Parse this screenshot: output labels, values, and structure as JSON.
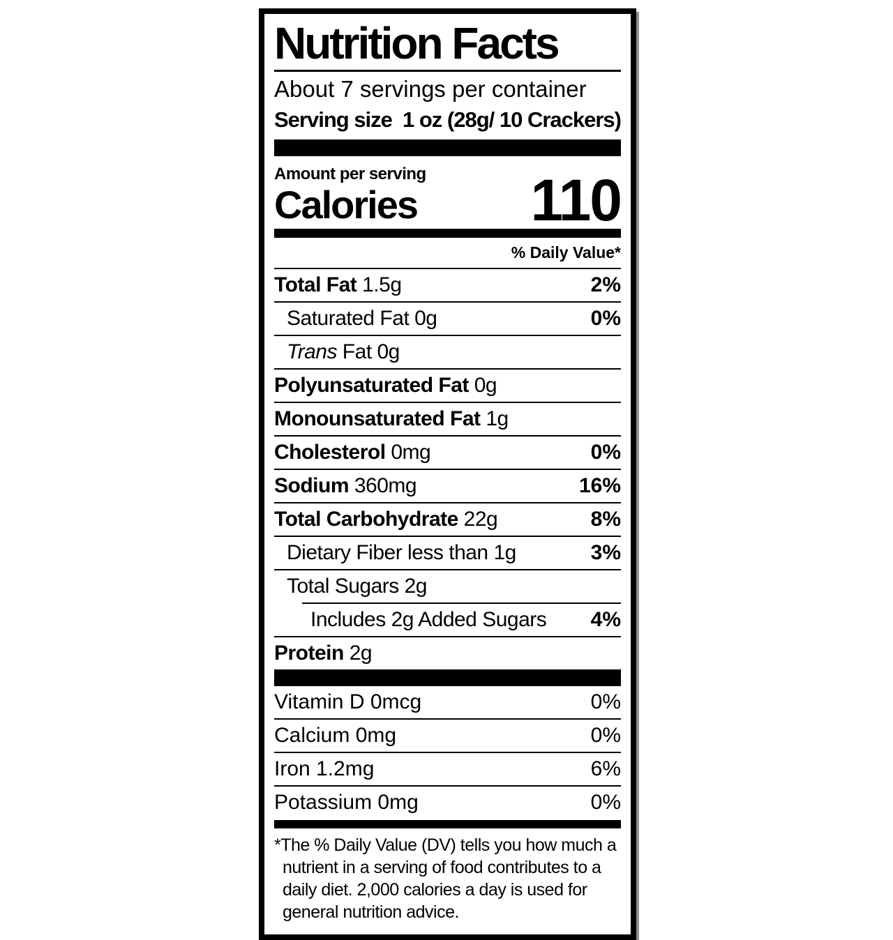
{
  "label": {
    "title": "Nutrition Facts",
    "servings_per_container": "About 7 servings per container",
    "serving_size_label": "Serving size",
    "serving_size_value": "1 oz (28g/ 10 Crackers)",
    "amount_per_serving": "Amount per serving",
    "calories_label": "Calories",
    "calories_value": "110",
    "daily_value_header": "% Daily Value*",
    "rows": [
      {
        "bold": "Total Fat",
        "rest": " 1.5g",
        "dv": "2%"
      },
      {
        "rest": "Saturated Fat 0g",
        "dv": "0%"
      },
      {
        "italic": "Trans",
        "rest": " Fat 0g"
      },
      {
        "bold": "Polyunsaturated Fat",
        "rest": " 0g"
      },
      {
        "bold": "Monounsaturated Fat",
        "rest": " 1g"
      },
      {
        "bold": "Cholesterol",
        "rest": " 0mg",
        "dv": "0%"
      },
      {
        "bold": "Sodium",
        "rest": " 360mg",
        "dv": "16%"
      },
      {
        "bold": "Total Carbohydrate",
        "rest": " 22g",
        "dv": "8%"
      },
      {
        "rest": "Dietary Fiber less than 1g",
        "dv": "3%"
      },
      {
        "rest": "Total Sugars 2g"
      },
      {
        "rest": "Includes 2g Added Sugars",
        "dv": "4%"
      },
      {
        "bold": "Protein",
        "rest": " 2g"
      }
    ],
    "vitamins": [
      {
        "name": "Vitamin D 0mcg",
        "dv": "0%"
      },
      {
        "name": "Calcium 0mg",
        "dv": "0%"
      },
      {
        "name": "Iron 1.2mg",
        "dv": "6%"
      },
      {
        "name": "Potassium 0mg",
        "dv": "0%"
      }
    ],
    "footnote": "*The % Daily Value (DV) tells you how much a nutrient in a serving of food contributes to a daily diet. 2,000 calories a day is used for general nutrition advice."
  }
}
